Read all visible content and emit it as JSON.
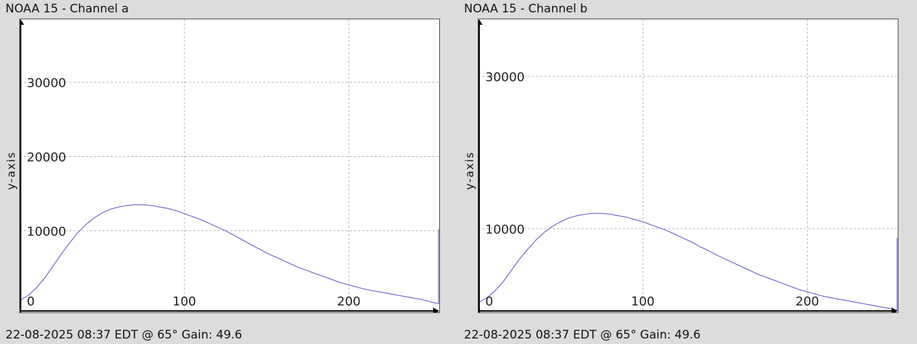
{
  "colors": {
    "background": "#dcdcdc",
    "plot_background": "#ffffff",
    "series": "#6b6bd0",
    "axis": "#000000"
  },
  "panels": [
    {
      "title": "NOAA 15 - Channel a",
      "footer": "22-08-2025 08:37 EDT @ 65° Gain: 49.6",
      "ylabel": "y-axis"
    },
    {
      "title": "NOAA 15 - Channel b",
      "footer": "22-08-2025 08:37 EDT @ 65° Gain: 49.6",
      "ylabel": "y-axis"
    }
  ],
  "chart_data": [
    {
      "type": "line",
      "title": "NOAA 15 - Channel a",
      "xlabel": "",
      "ylabel": "y-axis",
      "xlim": [
        0,
        255
      ],
      "ylim": [
        -1000,
        38500
      ],
      "xticks": [
        0,
        100,
        200
      ],
      "yticks": [
        10000,
        20000,
        30000
      ],
      "tick_labels_x": [
        "100",
        "200"
      ],
      "tick_labels_y": [
        "0",
        "10000",
        "20000",
        "30000"
      ],
      "grid": true,
      "series": [
        {
          "x": [
            0,
            5,
            10,
            15,
            20,
            25,
            30,
            35,
            40,
            45,
            50,
            55,
            60,
            65,
            70,
            75,
            80,
            85,
            90,
            95,
            100,
            105,
            110,
            115,
            120,
            125,
            130,
            135,
            140,
            145,
            150,
            155,
            160,
            165,
            170,
            175,
            180,
            185,
            190,
            195,
            200,
            205,
            210,
            215,
            220,
            225,
            230,
            235,
            240,
            245,
            250,
            254,
            254.6,
            254.6
          ],
          "y": [
            600,
            1300,
            2300,
            3600,
            5200,
            6800,
            8300,
            9700,
            10800,
            11700,
            12400,
            12900,
            13200,
            13400,
            13500,
            13500,
            13400,
            13200,
            13000,
            12700,
            12300,
            11900,
            11500,
            11000,
            10500,
            10000,
            9400,
            8800,
            8200,
            7600,
            7000,
            6500,
            6000,
            5500,
            5000,
            4600,
            4200,
            3800,
            3400,
            3000,
            2700,
            2400,
            2100,
            1900,
            1700,
            1500,
            1300,
            1100,
            900,
            700,
            400,
            200,
            200,
            10200
          ]
        }
      ]
    },
    {
      "type": "line",
      "title": "NOAA 15 - Channel b",
      "xlabel": "",
      "ylabel": "y-axis",
      "xlim": [
        0,
        255
      ],
      "ylim": [
        -1000,
        37500
      ],
      "xticks": [
        0,
        100,
        200
      ],
      "yticks": [
        10000,
        30000
      ],
      "tick_labels_x": [
        "100",
        "200"
      ],
      "tick_labels_y": [
        "0",
        "10000",
        "30000"
      ],
      "grid": true,
      "series": [
        {
          "x": [
            0,
            5,
            10,
            15,
            20,
            25,
            30,
            35,
            40,
            45,
            50,
            55,
            60,
            65,
            70,
            75,
            80,
            85,
            90,
            95,
            100,
            105,
            110,
            115,
            120,
            125,
            130,
            135,
            140,
            145,
            150,
            155,
            160,
            165,
            170,
            175,
            180,
            185,
            190,
            195,
            200,
            205,
            210,
            215,
            220,
            225,
            230,
            235,
            240,
            245,
            250,
            254,
            254.6,
            254.6
          ],
          "y": [
            300,
            900,
            1800,
            3000,
            4500,
            6000,
            7300,
            8500,
            9500,
            10300,
            10900,
            11400,
            11700,
            11900,
            12000,
            12000,
            11900,
            11700,
            11500,
            11200,
            10900,
            10500,
            10100,
            9700,
            9200,
            8700,
            8200,
            7600,
            7100,
            6500,
            6000,
            5500,
            5000,
            4500,
            4000,
            3600,
            3200,
            2800,
            2400,
            2000,
            1700,
            1400,
            1100,
            900,
            700,
            500,
            300,
            100,
            -100,
            -300,
            -500,
            -700,
            -700,
            8800
          ]
        }
      ]
    }
  ]
}
